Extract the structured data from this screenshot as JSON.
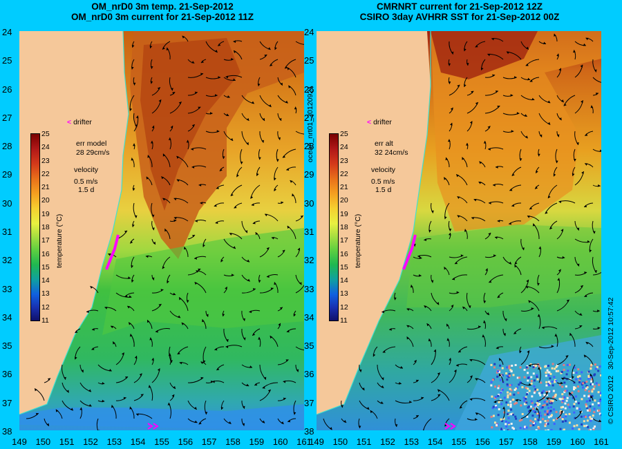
{
  "left_panel": {
    "title_line1": "OM_nrD0 3m temp. 21-Sep-2012",
    "title_line2": "OM_nrD0 3m current for 21-Sep-2012 11Z",
    "drifter_label": "drifter",
    "err_label": "err model",
    "err_value": "28 29cm/s",
    "velocity_label": "velocity",
    "velocity_scale": "0.5 m/s",
    "velocity_duration": "1.5 d"
  },
  "right_panel": {
    "title_line1": "CMRNRT current for 21-Sep-2012 12Z",
    "title_line2": "CSIRO 3day AVHRR SST for 21-Sep-2012 00Z",
    "drifter_label": "drifter",
    "err_label": "err alt",
    "err_value": "32 24cm/s",
    "velocity_label": "velocity",
    "velocity_scale": "0.5 m/s",
    "velocity_duration": "1.5 d"
  },
  "colorbar": {
    "title": "temperature (°C)",
    "labels": [
      "25",
      "24",
      "23",
      "22",
      "21",
      "20",
      "19",
      "18",
      "17",
      "16",
      "15",
      "14",
      "13",
      "12",
      "11"
    ]
  },
  "axes": {
    "lat_labels": [
      "24",
      "25",
      "26",
      "27",
      "28",
      "29",
      "30",
      "31",
      "32",
      "33",
      "34",
      "35",
      "36",
      "37",
      "38"
    ],
    "lon_labels": [
      "149",
      "150",
      "151",
      "152",
      "153",
      "154",
      "155",
      "156",
      "157",
      "158",
      "159",
      "160",
      "161"
    ]
  },
  "side_text": {
    "file_id": "ocean_nrt01_20120921",
    "credit": "© CSIRO 2012",
    "timestamp": "30-Sep-2012 10:57:42"
  },
  "colors": {
    "background": "#00ccff",
    "land": "#f5c89a",
    "drifter": "#ff00ff",
    "coast_line": "#40e0d0"
  }
}
